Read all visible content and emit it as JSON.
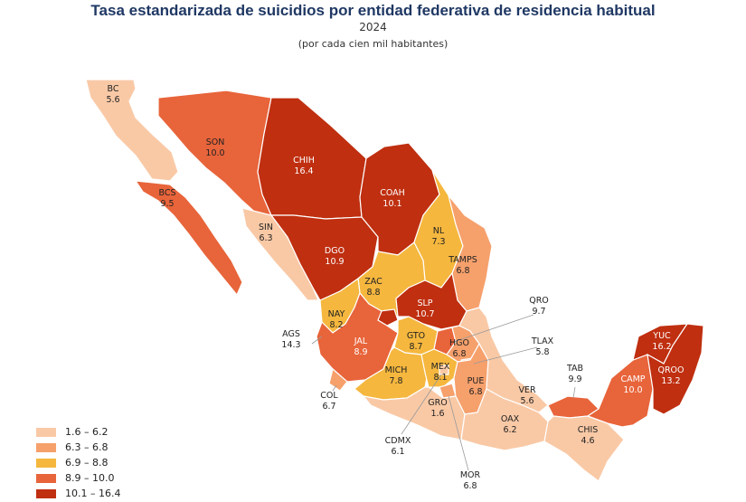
{
  "title": "Tasa estandarizada de suicidios por entidad federativa de residencia habitual",
  "year": "2024",
  "subtitle": "(por cada cien mil habitantes)",
  "colors": {
    "c1": "#f9c9a6",
    "c2": "#f6a06c",
    "c3": "#f5b73e",
    "c4": "#e8643a",
    "c5": "#bf2f10"
  },
  "legend": [
    {
      "label": "1.6 – 6.2",
      "color": "#f9c9a6"
    },
    {
      "label": "6.3 – 6.8",
      "color": "#f6a06c"
    },
    {
      "label": "6.9 – 8.8",
      "color": "#f5b73e"
    },
    {
      "label": "8.9 – 10.0",
      "color": "#e8643a"
    },
    {
      "label": "10.1 – 16.4",
      "color": "#bf2f10"
    }
  ],
  "states": [
    {
      "code": "BC",
      "value": "5.6"
    },
    {
      "code": "SON",
      "value": "10.0"
    },
    {
      "code": "CHIH",
      "value": "16.4"
    },
    {
      "code": "COAH",
      "value": "10.1"
    },
    {
      "code": "BCS",
      "value": "9.5"
    },
    {
      "code": "SIN",
      "value": "6.3"
    },
    {
      "code": "DGO",
      "value": "10.9"
    },
    {
      "code": "NL",
      "value": "7.3"
    },
    {
      "code": "TAMPS",
      "value": "6.8"
    },
    {
      "code": "ZAC",
      "value": "8.8"
    },
    {
      "code": "SLP",
      "value": "10.7"
    },
    {
      "code": "NAY",
      "value": "8.2"
    },
    {
      "code": "AGS",
      "value": "14.3"
    },
    {
      "code": "JAL",
      "value": "8.9"
    },
    {
      "code": "GTO",
      "value": "8.7"
    },
    {
      "code": "QRO",
      "value": "9.7"
    },
    {
      "code": "HGO",
      "value": "6.8"
    },
    {
      "code": "TLAX",
      "value": "5.8"
    },
    {
      "code": "MICH",
      "value": "7.8"
    },
    {
      "code": "MEX",
      "value": "8.1"
    },
    {
      "code": "PUE",
      "value": "6.8"
    },
    {
      "code": "COL",
      "value": "6.7"
    },
    {
      "code": "CDMX",
      "value": "6.1"
    },
    {
      "code": "MOR",
      "value": "6.8"
    },
    {
      "code": "GRO",
      "value": "1.6"
    },
    {
      "code": "OAX",
      "value": "6.2"
    },
    {
      "code": "VER",
      "value": "5.6"
    },
    {
      "code": "TAB",
      "value": "9.9"
    },
    {
      "code": "CHIS",
      "value": "4.6"
    },
    {
      "code": "CAMP",
      "value": "10.0"
    },
    {
      "code": "YUC",
      "value": "16.2"
    },
    {
      "code": "QROO",
      "value": "13.2"
    }
  ]
}
